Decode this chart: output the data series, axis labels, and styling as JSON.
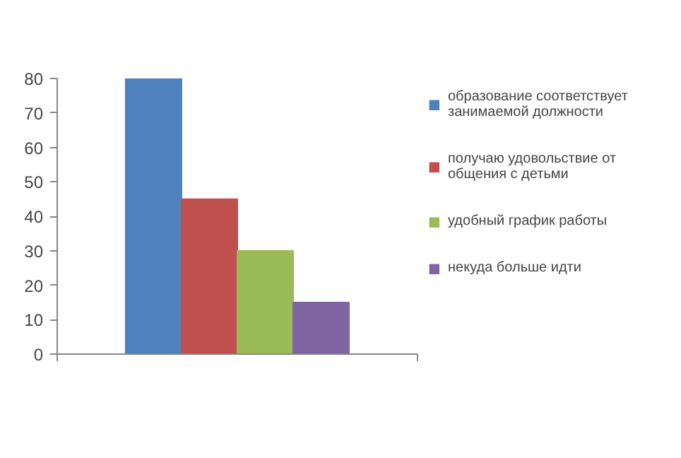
{
  "chart_data": {
    "type": "bar",
    "categories": [
      null
    ],
    "series": [
      {
        "name": "образование соответствует занимаемой должности",
        "color": "#4f81bd",
        "values": [
          80
        ]
      },
      {
        "name": "получаю удовольствие от общения с детьми",
        "color": "#c0504d",
        "values": [
          45
        ]
      },
      {
        "name": "удобный график работы",
        "color": "#9bbb59",
        "values": [
          30
        ]
      },
      {
        "name": "некуда больше идти",
        "color": "#8064a2",
        "values": [
          15
        ]
      }
    ],
    "ylim": [
      0,
      80
    ],
    "yticks": [
      0,
      10,
      20,
      30,
      40,
      50,
      60,
      70,
      80
    ],
    "legend": "right"
  }
}
